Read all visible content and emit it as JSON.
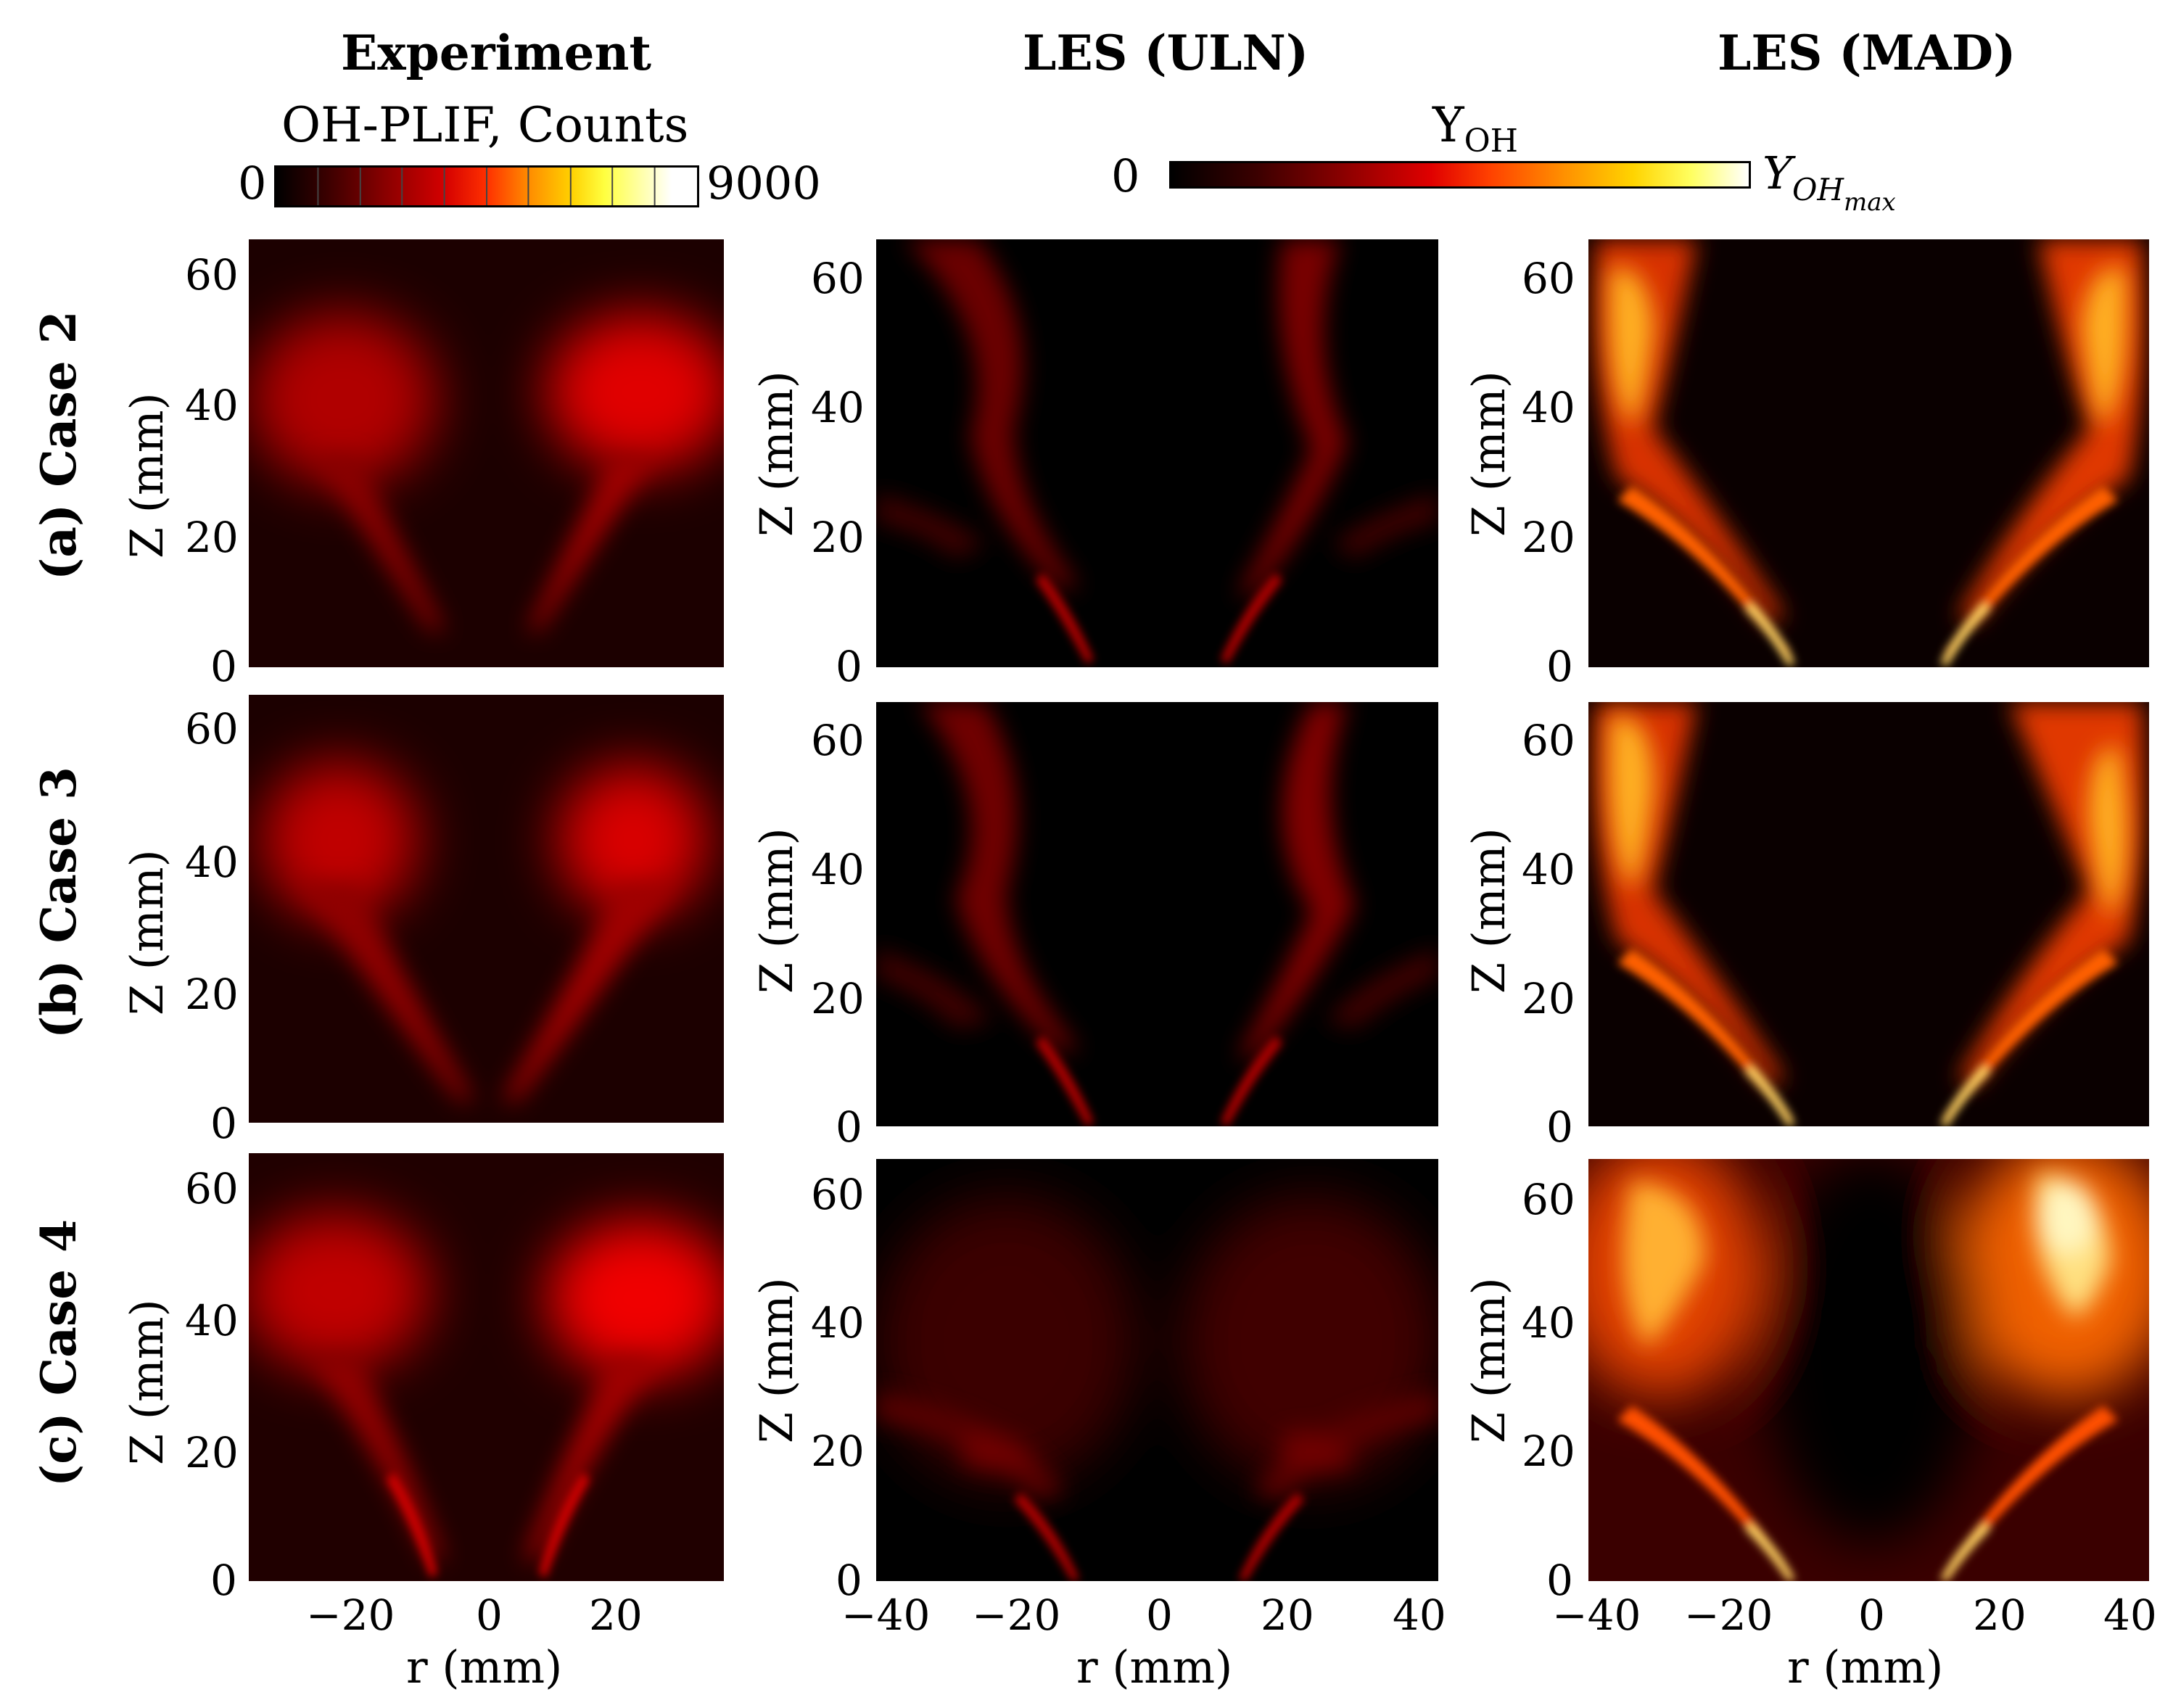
{
  "columns": {
    "experiment": "Experiment",
    "les_uln": "LES (ULN)",
    "les_mad": "LES (MAD)"
  },
  "colorbars": {
    "experiment": {
      "title": "OH-PLIF, Counts",
      "min": "0",
      "max": "9000"
    },
    "les": {
      "title_main": "Y",
      "title_sub": "OH",
      "min": "0",
      "max_main": "Y",
      "max_sub": "OH",
      "max_subsub": "max"
    }
  },
  "rows": [
    {
      "label": "(a) Case 2"
    },
    {
      "label": "(b) Case 3"
    },
    {
      "label": "(c) Case 4"
    }
  ],
  "axes": {
    "ylabel": "Z (mm)",
    "xlabel": "r (mm)",
    "yticks": [
      "0",
      "20",
      "40",
      "60"
    ],
    "xticks_exp": [
      "−20",
      "0",
      "20"
    ],
    "xticks_les": [
      "−40",
      "−20",
      "0",
      "20",
      "40"
    ]
  },
  "colors": {
    "flame_dim": "#7a0000",
    "flame_mid": "#e00000",
    "flame_hot": "#ffa000",
    "flame_peak": "#fff0a0"
  }
}
